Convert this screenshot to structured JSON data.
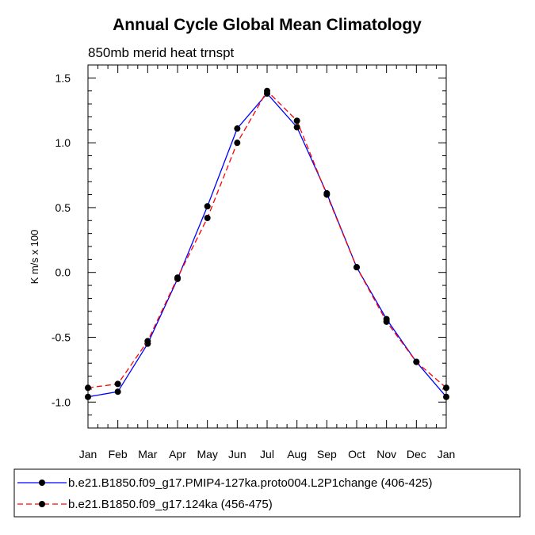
{
  "chart_data": {
    "type": "line",
    "title": "Annual Cycle Global Mean Climatology",
    "subtitle": "850mb merid heat trnspt",
    "xlabel": "",
    "ylabel": "K m/s x 100",
    "categories": [
      "Jan",
      "Feb",
      "Mar",
      "Apr",
      "May",
      "Jun",
      "Jul",
      "Aug",
      "Sep",
      "Oct",
      "Nov",
      "Dec",
      "Jan"
    ],
    "ylim": [
      -1.2,
      1.6
    ],
    "yticks": [
      1.5,
      1.0,
      0.5,
      0.0,
      -0.5,
      -1.0
    ],
    "ytick_labels": [
      "1.5",
      "1.0",
      "0.5",
      "0.0",
      "-0.5",
      "-1.0"
    ],
    "grid": false,
    "legend_position": "bottom",
    "series": [
      {
        "name": "b.e21.B1850.f09_g17.PMIP4-127ka.proto004.L2P1change (406-425)",
        "color": "#0000ff",
        "style": "solid",
        "values": [
          -0.96,
          -0.92,
          -0.55,
          -0.05,
          0.51,
          1.11,
          1.38,
          1.12,
          0.61,
          0.04,
          -0.36,
          -0.69,
          -0.96
        ]
      },
      {
        "name": "b.e21.B1850.f09_g17.124ka (456-475)",
        "color": "#ff0000",
        "style": "dashed",
        "values": [
          -0.89,
          -0.86,
          -0.53,
          -0.04,
          0.42,
          1.0,
          1.4,
          1.17,
          0.6,
          0.04,
          -0.38,
          -0.69,
          -0.89
        ]
      }
    ]
  }
}
